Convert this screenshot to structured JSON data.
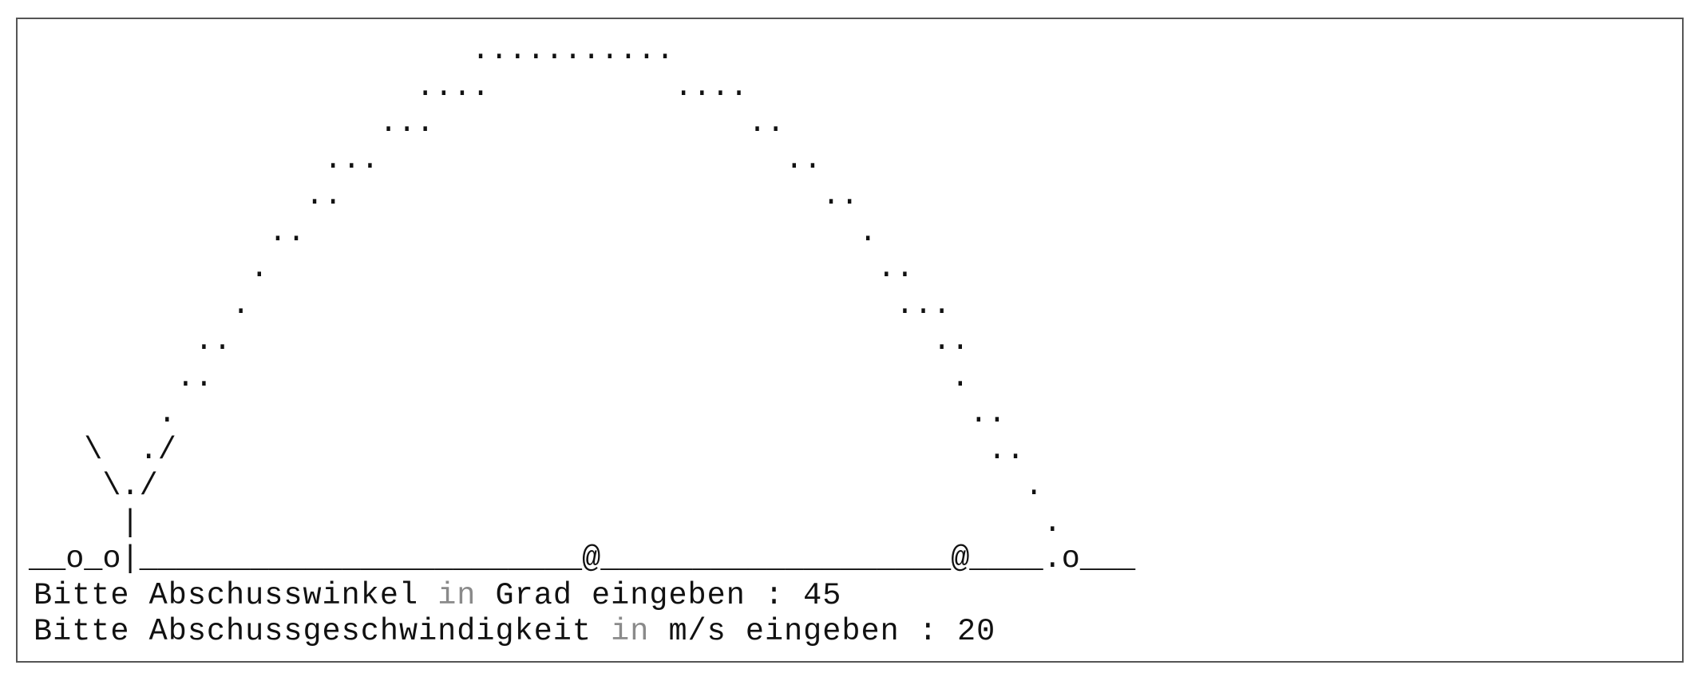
{
  "screen": {
    "art": [
      "                        ...........",
      "                     ....          ....",
      "                   ...                 ..",
      "                ...                      ..",
      "               ..                          ..",
      "             ..                              .",
      "            .                                 ..",
      "           .                                   ...",
      "         ..                                      ..",
      "        ..                                        .",
      "       .                                           ..",
      "   \\  ./                                            ..",
      "    \\./                                               .",
      "     |                                                 .",
      "__o_o|________________________@___________________@____.o___"
    ],
    "prompts": [
      {
        "segments": [
          "Bitte Abschusswinkel ",
          "in",
          " Grad eingeben : 45"
        ]
      },
      {
        "segments": [
          "Bitte Abschussgeschwindigkeit ",
          "in",
          " m/s eingeben : 20"
        ]
      }
    ]
  }
}
